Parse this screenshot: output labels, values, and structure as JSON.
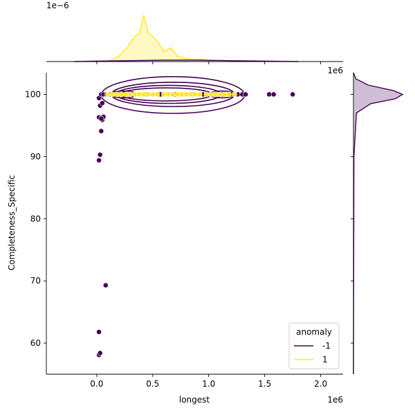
{
  "chart_data": {
    "type": "scatter",
    "subtype": "jointplot",
    "title": "",
    "xlabel": "longest",
    "ylabel": "Completeness_Specific",
    "x_offset_label": "1e6",
    "y_marginal_offset_label": "1e−6",
    "x_marginal_offset_label": "1e6",
    "xlim": [
      -0.45,
      2.2
    ],
    "ylim": [
      55,
      103.5
    ],
    "x_unit_scale": 1000000,
    "x_ticks": [
      0.0,
      0.5,
      1.0,
      1.5,
      2.0
    ],
    "x_tick_labels": [
      "0.0",
      "0.5",
      "1.0",
      "1.5",
      "2.0"
    ],
    "y_ticks": [
      60,
      70,
      80,
      90,
      100
    ],
    "y_tick_labels": [
      "60",
      "70",
      "80",
      "90",
      "100"
    ],
    "grid": false,
    "legend": {
      "title": "anomaly",
      "placement": "lower-right",
      "entries": [
        {
          "label": "-1",
          "color": "#440154"
        },
        {
          "label": "1",
          "color": "#fde725"
        }
      ]
    },
    "colors": {
      "anomaly_neg": "#440154",
      "anomaly_pos": "#fde725"
    },
    "series": [
      {
        "name": "-1",
        "color": "#440154",
        "points": [
          [
            0.02,
            58.1
          ],
          [
            0.03,
            58.4
          ],
          [
            0.02,
            61.8
          ],
          [
            0.08,
            69.3
          ],
          [
            0.02,
            89.4
          ],
          [
            0.03,
            90.3
          ],
          [
            0.04,
            94.1
          ],
          [
            0.02,
            96.3
          ],
          [
            0.05,
            95.9
          ],
          [
            0.06,
            96.4
          ],
          [
            0.04,
            96.1
          ],
          [
            0.03,
            98.2
          ],
          [
            0.05,
            98.6
          ],
          [
            0.02,
            99.4
          ],
          [
            0.04,
            100
          ],
          [
            0.06,
            100
          ],
          [
            0.09,
            100
          ],
          [
            0.12,
            100
          ],
          [
            0.2,
            100
          ],
          [
            0.3,
            100
          ],
          [
            0.45,
            100
          ],
          [
            0.57,
            100
          ],
          [
            0.7,
            100
          ],
          [
            0.85,
            100
          ],
          [
            0.95,
            100
          ],
          [
            1.05,
            100
          ],
          [
            1.12,
            100
          ],
          [
            1.2,
            100
          ],
          [
            1.26,
            100
          ],
          [
            1.3,
            100
          ],
          [
            1.33,
            100
          ],
          [
            1.54,
            100
          ],
          [
            1.58,
            100
          ],
          [
            1.75,
            100
          ]
        ]
      },
      {
        "name": "1",
        "color": "#fde725",
        "points": [
          [
            0.1,
            100
          ],
          [
            0.14,
            100
          ],
          [
            0.18,
            100
          ],
          [
            0.22,
            100
          ],
          [
            0.26,
            100
          ],
          [
            0.3,
            100
          ],
          [
            0.34,
            100
          ],
          [
            0.38,
            100
          ],
          [
            0.42,
            100
          ],
          [
            0.46,
            100
          ],
          [
            0.5,
            100
          ],
          [
            0.54,
            100
          ],
          [
            0.6,
            100
          ],
          [
            0.64,
            100
          ],
          [
            0.68,
            100
          ],
          [
            0.72,
            100
          ],
          [
            0.76,
            100
          ],
          [
            0.8,
            100
          ],
          [
            0.84,
            100
          ],
          [
            0.88,
            100
          ],
          [
            0.92,
            100
          ],
          [
            0.98,
            100
          ],
          [
            1.02,
            100
          ],
          [
            1.06,
            100
          ],
          [
            1.1,
            100
          ],
          [
            1.14,
            100
          ],
          [
            1.18,
            100
          ],
          [
            1.23,
            100
          ]
        ]
      }
    ],
    "contour_levels": [
      {
        "cx": 0.68,
        "cy": 99.9,
        "rx": 0.64,
        "ry": 2.95
      },
      {
        "cx": 0.68,
        "cy": 100.0,
        "rx": 0.55,
        "ry": 1.95
      },
      {
        "cx": 0.64,
        "cy": 100.0,
        "rx": 0.47,
        "ry": 1.45
      },
      {
        "cx": 0.62,
        "cy": 100.0,
        "rx": 0.41,
        "ry": 1.05
      },
      {
        "cx": 0.24,
        "cy": 100.0,
        "rx": 0.12,
        "ry": 0.55
      },
      {
        "cx": 1.12,
        "cy": 100.0,
        "rx": 0.12,
        "ry": 0.55
      }
    ],
    "top_marginal": {
      "neg": [
        [
          -0.2,
          0.0
        ],
        [
          0.0,
          0.01
        ],
        [
          0.3,
          0.02
        ],
        [
          0.6,
          0.03
        ],
        [
          0.9,
          0.03
        ],
        [
          1.2,
          0.02
        ],
        [
          1.5,
          0.01
        ],
        [
          1.8,
          0.0
        ]
      ],
      "pos": [
        [
          0.05,
          0.0
        ],
        [
          0.12,
          0.02
        ],
        [
          0.2,
          0.12
        ],
        [
          0.28,
          0.33
        ],
        [
          0.34,
          0.55
        ],
        [
          0.38,
          0.6
        ],
        [
          0.42,
          1.0
        ],
        [
          0.46,
          0.62
        ],
        [
          0.5,
          0.55
        ],
        [
          0.55,
          0.4
        ],
        [
          0.6,
          0.22
        ],
        [
          0.66,
          0.3
        ],
        [
          0.72,
          0.12
        ],
        [
          0.8,
          0.06
        ],
        [
          0.88,
          0.05
        ],
        [
          0.96,
          0.05
        ],
        [
          1.0,
          0.01
        ],
        [
          1.05,
          0.0
        ]
      ]
    },
    "right_marginal": {
      "neg": [
        [
          55,
          0.0
        ],
        [
          90,
          0.01
        ],
        [
          97,
          0.06
        ],
        [
          98.5,
          0.35
        ],
        [
          99.3,
          0.85
        ],
        [
          100.0,
          1.0
        ],
        [
          100.6,
          0.82
        ],
        [
          101.5,
          0.3
        ],
        [
          102.5,
          0.05
        ],
        [
          103.5,
          0.0
        ]
      ]
    }
  }
}
